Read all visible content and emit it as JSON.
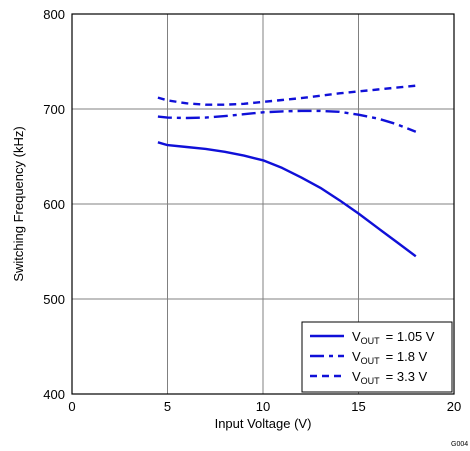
{
  "chart_data": {
    "type": "line",
    "title": "",
    "xlabel": "Input Voltage (V)",
    "ylabel": "Switching Frequency (kHz)",
    "xlim": [
      0,
      20
    ],
    "ylim": [
      400,
      800
    ],
    "xticks": [
      0,
      5,
      10,
      15,
      20
    ],
    "yticks": [
      400,
      500,
      600,
      700,
      800
    ],
    "xtick_labels": [
      "0",
      "5",
      "10",
      "15",
      "20"
    ],
    "ytick_labels": [
      "400",
      "500",
      "600",
      "700",
      "800"
    ],
    "grid": true,
    "legend_position": "bottom-right",
    "line_color": "#1010d8",
    "series": [
      {
        "name": "VOUT = 1.05 V",
        "label_main": "V",
        "label_sub": "OUT",
        "label_rest": "= 1.05 V",
        "style": "solid",
        "x": [
          4.5,
          5,
          6,
          7,
          8,
          9,
          10,
          11,
          12,
          13,
          14,
          15,
          16,
          17,
          18
        ],
        "y": [
          665,
          662,
          660,
          658,
          655,
          651,
          646,
          638,
          628,
          617,
          604,
          590,
          575,
          560,
          545
        ]
      },
      {
        "name": "VOUT = 1.8 V",
        "label_main": "V",
        "label_sub": "OUT",
        "label_rest": "= 1.8 V",
        "style": "dashdot",
        "x": [
          4.5,
          5,
          6,
          7,
          8,
          9,
          10,
          11,
          12,
          13,
          14,
          15,
          16,
          17,
          18
        ],
        "y": [
          692,
          691,
          690.5,
          691,
          692.5,
          694.5,
          696.5,
          697.5,
          698,
          698,
          697,
          694,
          690,
          684,
          676
        ]
      },
      {
        "name": "VOUT = 3.3 V",
        "label_main": "V",
        "label_sub": "OUT",
        "label_rest": "= 3.3 V",
        "style": "dashed",
        "x": [
          4.5,
          5,
          6,
          7,
          8,
          9,
          10,
          11,
          12,
          13,
          14,
          15,
          16,
          17,
          18
        ],
        "y": [
          712,
          709,
          706,
          704.5,
          704.5,
          705.5,
          707.5,
          709.5,
          711.5,
          714,
          716.5,
          718.5,
          720.5,
          722.5,
          724.5
        ]
      }
    ],
    "figure_code": "G004"
  }
}
